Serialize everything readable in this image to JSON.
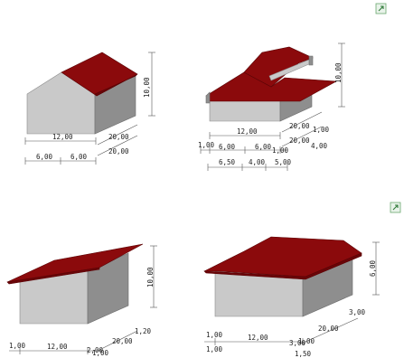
{
  "icons": [
    "expand-icon",
    "expand-icon"
  ],
  "panels": [
    {
      "name": "gable-roof",
      "labels": {
        "height": "10,00",
        "width": "12,00",
        "half_left": "6,00",
        "half_right": "6,00",
        "depth_a": "20,00",
        "depth_b": "20,00"
      }
    },
    {
      "name": "gable-roof-with-dormer",
      "labels": {
        "height": "10,00",
        "width": "12,00",
        "overhang_left": "1,00",
        "seg1": "6,00",
        "seg2": "6,00",
        "overhang_right": "1,00",
        "seg3": "6,50",
        "seg4": "4,00",
        "seg5": "5,00",
        "depth_a": "20,00",
        "overhang_a": "1,00",
        "depth_b": "20,00",
        "offset": "4,00"
      }
    },
    {
      "name": "mono-pitch-roof",
      "labels": {
        "height": "10,00",
        "overhang_left": "1,00",
        "width": "12,00",
        "overhang_right": "2,00",
        "depth": "20,00",
        "depth_overhang": "1,20",
        "extra": "1,00"
      }
    },
    {
      "name": "hip-roof",
      "labels": {
        "height": "6,00",
        "overhang_left": "1,00",
        "width": "12,00",
        "overhang_right": "3,00",
        "overhang_bottom": "1,00",
        "depth": "20,00",
        "depth_overhang": "3,00",
        "front_overhang": "1,50",
        "extra": "1,00"
      }
    }
  ]
}
